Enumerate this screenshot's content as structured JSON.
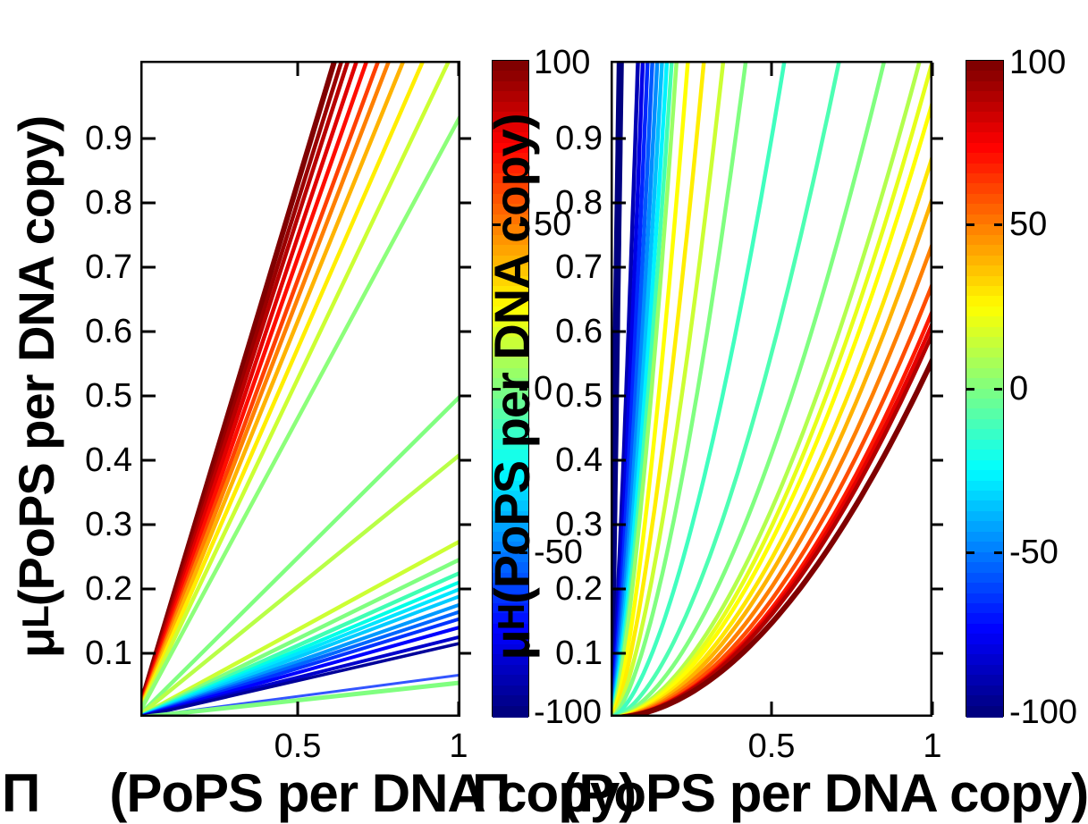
{
  "figure": {
    "background": "#FFFFFF",
    "left_plot": {
      "ylabel": {
        "mu": "μ",
        "sub": "L",
        "rest": " (PoPS per DNA copy)"
      },
      "xlabel": {
        "pi": "Π",
        "rest": "(PoPS per DNA copy)"
      },
      "xtick_labels": [
        "0.5",
        "1"
      ],
      "ytick_labels": [
        "0.1",
        "0.2",
        "0.3",
        "0.4",
        "0.5",
        "0.6",
        "0.7",
        "0.8",
        "0.9"
      ]
    },
    "right_plot": {
      "ylabel": {
        "mu": "μ",
        "sub": "H",
        "rest": " (PoPS per DNA copy)"
      },
      "xlabel": {
        "pi": "Π",
        "rest": "(PoPS per DNA copy)"
      },
      "xtick_labels": [
        "0.5",
        "1"
      ],
      "ytick_labels": [
        "0.1",
        "0.2",
        "0.3",
        "0.4",
        "0.5",
        "0.6",
        "0.7",
        "0.8",
        "0.9"
      ]
    },
    "colorbar_left": {
      "tick_labels": [
        "100",
        "50",
        "0",
        "-50",
        "-100"
      ]
    },
    "colorbar_right": {
      "tick_labels": [
        "100",
        "50",
        "0",
        "-50",
        "-100"
      ]
    }
  },
  "chart_data": [
    {
      "type": "contour",
      "subplot": "left",
      "xlabel": "Π (PoPS per DNA copy)",
      "ylabel": "μ_L (PoPS per DNA copy)",
      "xlim": [
        0,
        1.0
      ],
      "ylim": [
        0,
        1.02
      ],
      "xticks": [
        0.5,
        1
      ],
      "yticks": [
        0.1,
        0.2,
        0.3,
        0.4,
        0.5,
        0.6,
        0.7,
        0.8,
        0.9
      ],
      "grid": false,
      "colormap": "jet",
      "contour_level_range": [
        -100,
        100
      ],
      "geometry": "straight rays from origin (0,0); each line listed by its far endpoint in data coordinates",
      "lines": [
        {
          "end": [
            0.614,
            1.02
          ],
          "color": "#800000",
          "w": 6
        },
        {
          "end": [
            0.636,
            1.02
          ],
          "color": "#990000",
          "w": 4.5
        },
        {
          "end": [
            0.656,
            1.02
          ],
          "color": "#B80000",
          "w": 4.5
        },
        {
          "end": [
            0.683,
            1.02
          ],
          "color": "#E00000",
          "w": 4.5
        },
        {
          "end": [
            0.714,
            1.02
          ],
          "color": "#FF0D00",
          "w": 4.5
        },
        {
          "end": [
            0.75,
            1.02
          ],
          "color": "#FF4000",
          "w": 4.5
        },
        {
          "end": [
            0.783,
            1.02
          ],
          "color": "#FF7F00",
          "w": 4.5
        },
        {
          "end": [
            0.828,
            1.02
          ],
          "color": "#FFB300",
          "w": 4.5
        },
        {
          "end": [
            0.889,
            1.02
          ],
          "color": "#FFEE00",
          "w": 4.5
        },
        {
          "end": [
            0.969,
            1.02
          ],
          "color": "#CCFF33",
          "w": 4.5
        },
        {
          "end": [
            1.0,
            0.93
          ],
          "color": "#8CFF7A",
          "w": 4.5
        },
        {
          "end": [
            1.0,
            0.497
          ],
          "color": "#80FF80",
          "w": 4.5
        },
        {
          "end": [
            1.0,
            0.407
          ],
          "color": "#B8FF47",
          "w": 4.5
        },
        {
          "end": [
            1.0,
            0.273
          ],
          "color": "#CCFF33",
          "w": 4.5
        },
        {
          "end": [
            1.0,
            0.245
          ],
          "color": "#80FF80",
          "w": 4.5
        },
        {
          "end": [
            1.0,
            0.224
          ],
          "color": "#40FFB3",
          "w": 4.5
        },
        {
          "end": [
            1.0,
            0.21
          ],
          "color": "#00FFE6",
          "w": 4
        },
        {
          "end": [
            1.0,
            0.199
          ],
          "color": "#00E6FF",
          "w": 4
        },
        {
          "end": [
            1.0,
            0.188
          ],
          "color": "#00CCFF",
          "w": 4
        },
        {
          "end": [
            1.0,
            0.175
          ],
          "color": "#0099FF",
          "w": 4
        },
        {
          "end": [
            1.0,
            0.164
          ],
          "color": "#0066FF",
          "w": 4
        },
        {
          "end": [
            1.0,
            0.153
          ],
          "color": "#0033FF",
          "w": 4
        },
        {
          "end": [
            1.0,
            0.14
          ],
          "color": "#0000FF",
          "w": 4
        },
        {
          "end": [
            1.0,
            0.125
          ],
          "color": "#0000CC",
          "w": 4
        },
        {
          "end": [
            1.0,
            0.115
          ],
          "color": "#000099",
          "w": 3.5
        },
        {
          "end": [
            1.0,
            0.066
          ],
          "color": "#3355FF",
          "w": 3
        },
        {
          "end": [
            1.0,
            0.054
          ],
          "color": "#80FF80",
          "w": 5
        }
      ]
    },
    {
      "type": "contour",
      "subplot": "right",
      "xlabel": "Π (PoPS per DNA copy)",
      "ylabel": "μ_H (PoPS per DNA copy)",
      "xlim": [
        0,
        1.0
      ],
      "ylim": [
        0,
        1.02
      ],
      "xticks": [
        0.5,
        1
      ],
      "yticks": [
        0.1,
        0.2,
        0.3,
        0.4,
        0.5,
        0.6,
        0.7,
        0.8,
        0.9
      ],
      "grid": false,
      "colormap": "jet",
      "contour_level_range": [
        -100,
        100
      ],
      "geometry": "concave-up curves from origin: y = end_y * s^p, x = end_x * s",
      "lines": [
        {
          "end": [
            0.03,
            1.02
          ],
          "p": 1.03,
          "color": "#000080",
          "w": 8
        },
        {
          "end": [
            0.085,
            1.02
          ],
          "p": 1.25,
          "color": "#0000B3",
          "w": 4.5
        },
        {
          "end": [
            0.1,
            1.02
          ],
          "p": 1.3,
          "color": "#0000E6",
          "w": 4.5
        },
        {
          "end": [
            0.115,
            1.02
          ],
          "p": 1.32,
          "color": "#0026FF",
          "w": 4.5
        },
        {
          "end": [
            0.13,
            1.02
          ],
          "p": 1.35,
          "color": "#0059FF",
          "w": 4.5
        },
        {
          "end": [
            0.145,
            1.02
          ],
          "p": 1.38,
          "color": "#008CFF",
          "w": 4.5
        },
        {
          "end": [
            0.16,
            1.02
          ],
          "p": 1.4,
          "color": "#00BFFF",
          "w": 4.5
        },
        {
          "end": [
            0.175,
            1.02
          ],
          "p": 1.42,
          "color": "#00F2FF",
          "w": 4.5
        },
        {
          "end": [
            0.19,
            1.02
          ],
          "p": 1.44,
          "color": "#40FFB3",
          "w": 4.5
        },
        {
          "end": [
            0.205,
            1.02
          ],
          "p": 1.46,
          "color": "#99FF66",
          "w": 4.5
        },
        {
          "end": [
            0.24,
            1.02
          ],
          "p": 1.5,
          "color": "#FFFF00",
          "w": 4.5
        },
        {
          "end": [
            0.29,
            1.02
          ],
          "p": 1.52,
          "color": "#FFEE00",
          "w": 4.5
        },
        {
          "end": [
            0.35,
            1.02
          ],
          "p": 1.55,
          "color": "#CCFF33",
          "w": 4.5
        },
        {
          "end": [
            0.42,
            1.02
          ],
          "p": 1.58,
          "color": "#80FF80",
          "w": 4.5
        },
        {
          "end": [
            0.54,
            1.02
          ],
          "p": 1.62,
          "color": "#40FFBF",
          "w": 4.5
        },
        {
          "end": [
            0.71,
            1.02
          ],
          "p": 1.68,
          "color": "#4DFFB3",
          "w": 4.5
        },
        {
          "end": [
            0.85,
            1.02
          ],
          "p": 1.72,
          "color": "#80FF80",
          "w": 4.5
        },
        {
          "end": [
            0.96,
            1.02
          ],
          "p": 1.76,
          "color": "#B3FF4D",
          "w": 4.5
        },
        {
          "end": [
            1.0,
            1.02
          ],
          "p": 1.78,
          "color": "#E6FF1A",
          "w": 4.5
        },
        {
          "end": [
            1.0,
            0.956
          ],
          "p": 1.8,
          "color": "#FFFF00",
          "w": 4.5
        },
        {
          "end": [
            1.0,
            0.872
          ],
          "p": 1.82,
          "color": "#FFE600",
          "w": 4.5
        },
        {
          "end": [
            1.0,
            0.807
          ],
          "p": 1.84,
          "color": "#FFB300",
          "w": 4.5
        },
        {
          "end": [
            1.0,
            0.736
          ],
          "p": 1.86,
          "color": "#FF8000",
          "w": 4.5
        },
        {
          "end": [
            1.0,
            0.674
          ],
          "p": 1.88,
          "color": "#FF4D00",
          "w": 4.5
        },
        {
          "end": [
            1.0,
            0.632
          ],
          "p": 1.9,
          "color": "#FF1A00",
          "w": 4.5
        },
        {
          "end": [
            1.0,
            0.613
          ],
          "p": 1.9,
          "color": "#E60000",
          "w": 4.5
        },
        {
          "end": [
            1.0,
            0.597
          ],
          "p": 1.9,
          "color": "#B30000",
          "w": 4.5
        },
        {
          "end": [
            1.0,
            0.556
          ],
          "p": 1.92,
          "color": "#800000",
          "w": 6
        }
      ]
    },
    {
      "type": "colorbar",
      "count": 2,
      "colormap": "jet",
      "range": [
        -100,
        100
      ],
      "ticks": [
        100,
        50,
        0,
        -50,
        -100
      ]
    }
  ]
}
